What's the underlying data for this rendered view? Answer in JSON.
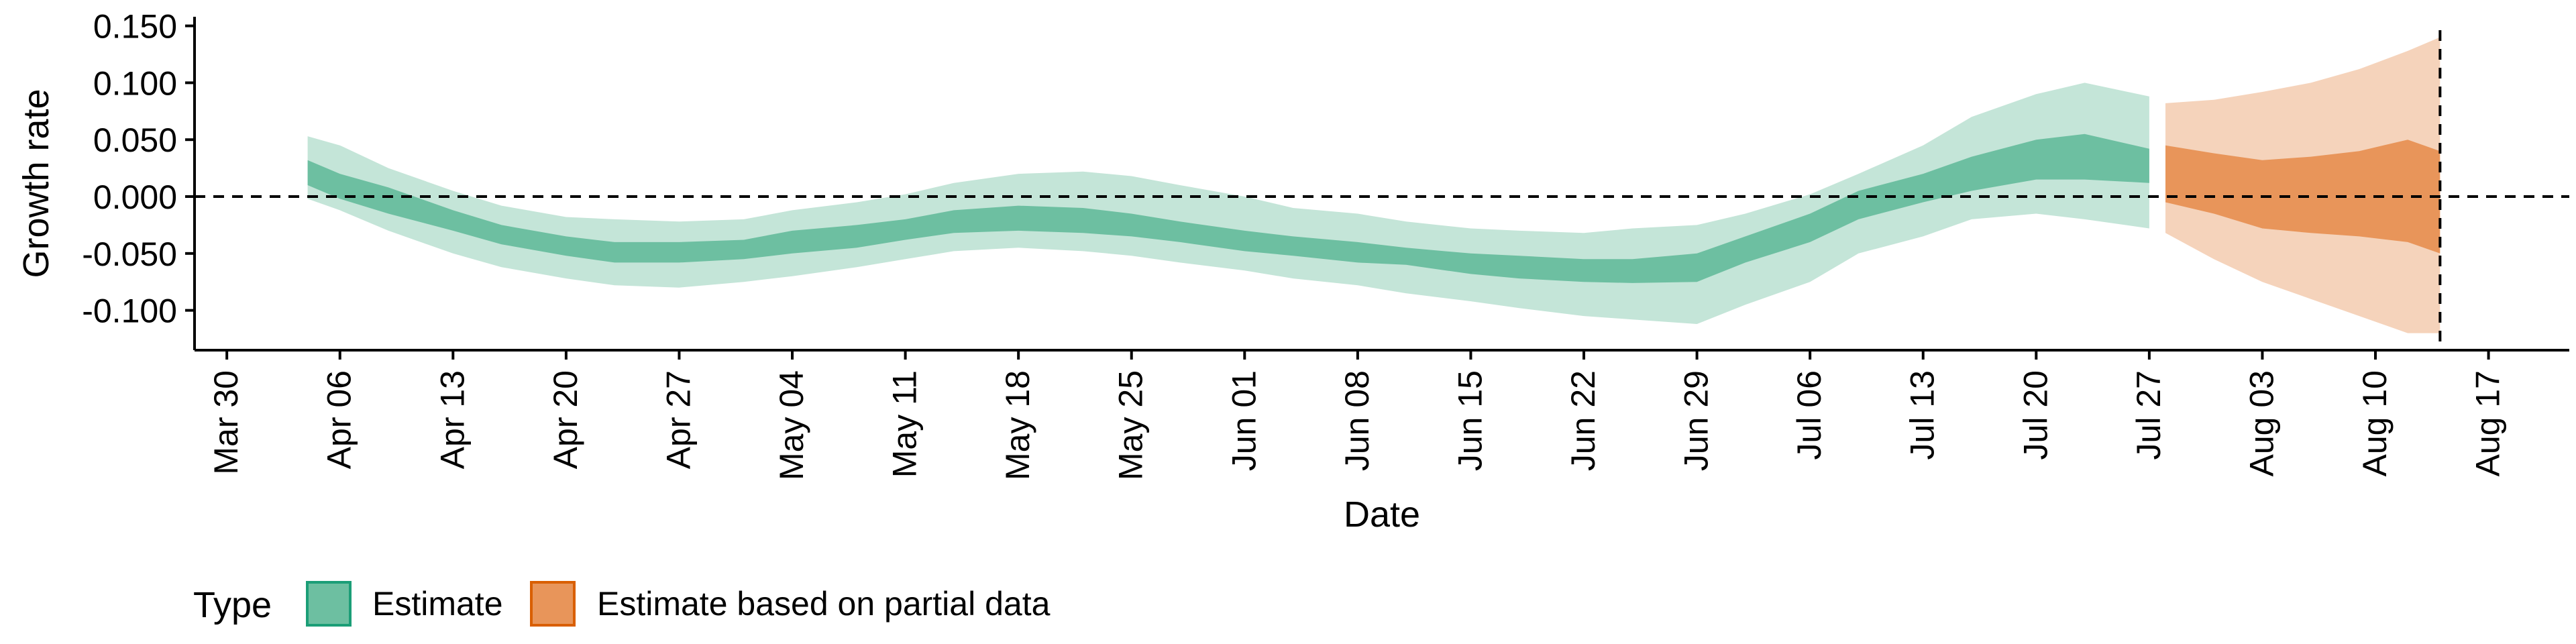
{
  "chart_data": {
    "type": "area",
    "title": "",
    "xlabel": "Date",
    "ylabel": "Growth rate",
    "x_tick_labels": [
      "Mar 30",
      "Apr 06",
      "Apr 13",
      "Apr 20",
      "Apr 27",
      "May 04",
      "May 11",
      "May 18",
      "May 25",
      "Jun 01",
      "Jun 08",
      "Jun 15",
      "Jun 22",
      "Jun 29",
      "Jul 06",
      "Jul 13",
      "Jul 20",
      "Jul 27",
      "Aug 03",
      "Aug 10",
      "Aug 17"
    ],
    "x_tick_days": [
      0,
      7,
      14,
      21,
      28,
      35,
      42,
      49,
      56,
      63,
      70,
      77,
      84,
      91,
      98,
      105,
      112,
      119,
      126,
      133,
      140
    ],
    "y_ticks": [
      -0.1,
      -0.05,
      0.0,
      0.05,
      0.1,
      0.15
    ],
    "y_tick_labels": [
      "-0.100",
      "-0.050",
      "0.000",
      "0.050",
      "0.100",
      "0.150"
    ],
    "xlim": [
      "Mar 28",
      "Aug 22"
    ],
    "ylim": [
      -0.135,
      0.158
    ],
    "reference_line_y": 0,
    "vertical_line_x": "Aug 14",
    "grid": false,
    "legend": {
      "title": "Type",
      "position": "bottom-left",
      "entries": [
        {
          "label": "Estimate",
          "color": "#6dbfa1"
        },
        {
          "label": "Estimate based on partial data",
          "color": "#e8955a"
        }
      ]
    },
    "colors": {
      "estimate_inner": "#6dbfa1",
      "estimate_outer": "#c4e5d8",
      "partial_inner": "#e8955a",
      "partial_outer": "#f5d3bb",
      "estimate_legend_border": "#1b9e77",
      "partial_legend_border": "#d95f02"
    },
    "series": [
      {
        "type": "Estimate",
        "x": [
          "Apr 04",
          "Apr 06",
          "Apr 09",
          "Apr 13",
          "Apr 16",
          "Apr 20",
          "Apr 23",
          "Apr 27",
          "May 01",
          "May 04",
          "May 08",
          "May 11",
          "May 14",
          "May 18",
          "May 22",
          "May 25",
          "May 28",
          "Jun 01",
          "Jun 04",
          "Jun 08",
          "Jun 11",
          "Jun 15",
          "Jun 18",
          "Jun 22",
          "Jun 25",
          "Jun 29",
          "Jul 02",
          "Jul 06",
          "Jul 09",
          "Jul 13",
          "Jul 16",
          "Jul 20",
          "Jul 23",
          "Jul 27"
        ],
        "outer_upper": [
          0.053,
          0.045,
          0.025,
          0.005,
          -0.008,
          -0.018,
          -0.02,
          -0.022,
          -0.02,
          -0.012,
          -0.005,
          0.002,
          0.012,
          0.02,
          0.022,
          0.018,
          0.01,
          0.0,
          -0.01,
          -0.015,
          -0.022,
          -0.028,
          -0.03,
          -0.032,
          -0.028,
          -0.025,
          -0.015,
          0.002,
          0.02,
          0.045,
          0.07,
          0.09,
          0.1,
          0.088
        ],
        "inner_upper": [
          0.032,
          0.02,
          0.008,
          -0.012,
          -0.025,
          -0.035,
          -0.04,
          -0.04,
          -0.038,
          -0.03,
          -0.025,
          -0.02,
          -0.012,
          -0.008,
          -0.01,
          -0.015,
          -0.022,
          -0.03,
          -0.035,
          -0.04,
          -0.045,
          -0.05,
          -0.052,
          -0.055,
          -0.055,
          -0.05,
          -0.035,
          -0.015,
          0.005,
          0.02,
          0.035,
          0.05,
          0.055,
          0.042
        ],
        "inner_lower": [
          0.01,
          -0.002,
          -0.015,
          -0.03,
          -0.042,
          -0.052,
          -0.058,
          -0.058,
          -0.055,
          -0.05,
          -0.045,
          -0.038,
          -0.032,
          -0.03,
          -0.032,
          -0.035,
          -0.04,
          -0.048,
          -0.052,
          -0.058,
          -0.06,
          -0.068,
          -0.072,
          -0.075,
          -0.076,
          -0.075,
          -0.058,
          -0.04,
          -0.02,
          -0.005,
          0.005,
          0.015,
          0.015,
          0.012
        ],
        "outer_lower": [
          -0.002,
          -0.012,
          -0.03,
          -0.05,
          -0.062,
          -0.072,
          -0.078,
          -0.08,
          -0.075,
          -0.07,
          -0.062,
          -0.055,
          -0.048,
          -0.045,
          -0.048,
          -0.052,
          -0.058,
          -0.065,
          -0.072,
          -0.078,
          -0.085,
          -0.092,
          -0.098,
          -0.105,
          -0.108,
          -0.112,
          -0.095,
          -0.075,
          -0.05,
          -0.035,
          -0.02,
          -0.015,
          -0.02,
          -0.028
        ]
      },
      {
        "type": "Estimate based on partial data",
        "x": [
          "Jul 28",
          "Jul 31",
          "Aug 03",
          "Aug 06",
          "Aug 09",
          "Aug 12",
          "Aug 14"
        ],
        "outer_upper": [
          0.082,
          0.085,
          0.092,
          0.1,
          0.112,
          0.128,
          0.14
        ],
        "inner_upper": [
          0.045,
          0.038,
          0.032,
          0.035,
          0.04,
          0.05,
          0.04
        ],
        "inner_lower": [
          -0.005,
          -0.015,
          -0.028,
          -0.032,
          -0.035,
          -0.04,
          -0.05
        ],
        "outer_lower": [
          -0.032,
          -0.055,
          -0.075,
          -0.09,
          -0.105,
          -0.12,
          -0.12
        ]
      }
    ]
  }
}
